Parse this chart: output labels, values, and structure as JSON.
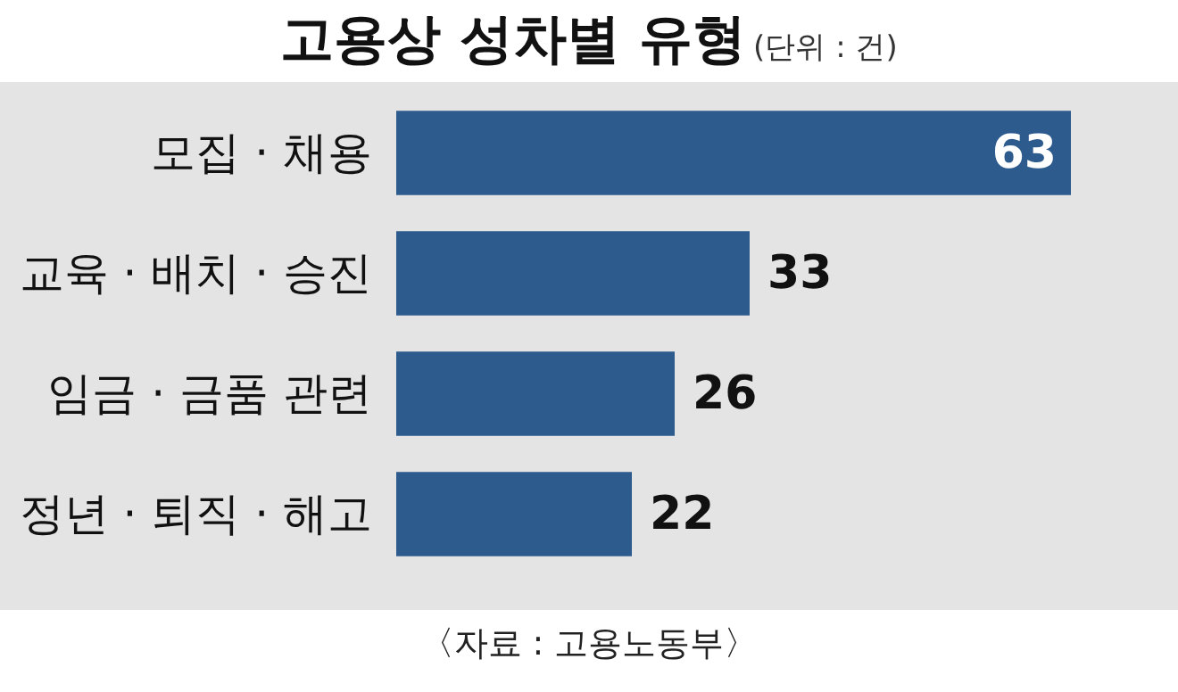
{
  "chart_data": {
    "type": "bar",
    "orientation": "horizontal",
    "title": "고용상 성차별 유형",
    "subtitle": "(단위 : 건)",
    "categories": [
      "모집 · 채용",
      "교육 · 배치 · 승진",
      "임금 · 금품 관련",
      "정년 · 퇴직 · 해고"
    ],
    "values": [
      63,
      33,
      26,
      22
    ],
    "color": "#2e5b8e",
    "data_labels": true,
    "annotations": [
      "〈자료 : 고용노동부〉"
    ]
  }
}
